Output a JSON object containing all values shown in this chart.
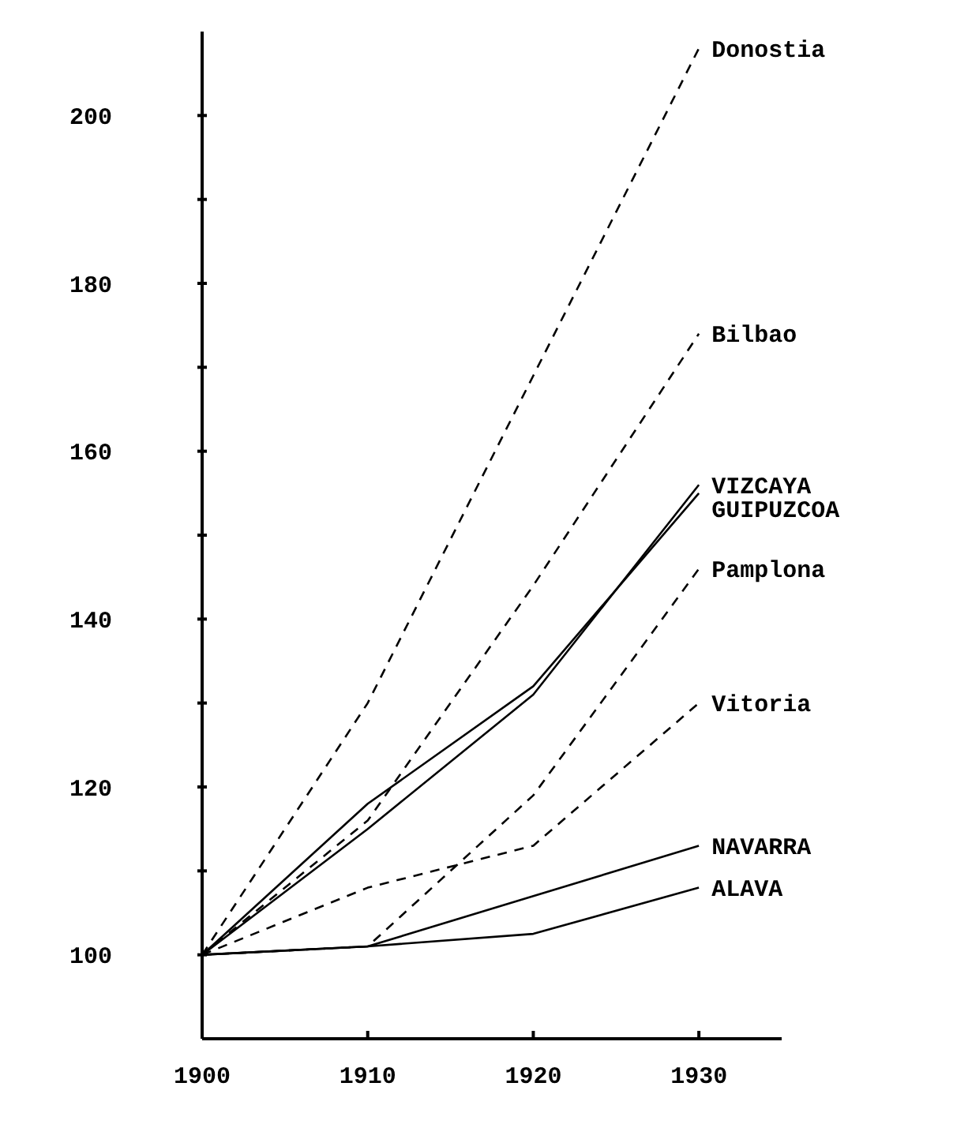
{
  "chart_data": {
    "type": "line",
    "x": [
      1900,
      1910,
      1920,
      1930
    ],
    "xlim": [
      1900,
      1935
    ],
    "xticks": [
      1900,
      1910,
      1920,
      1930
    ],
    "ylim": [
      90,
      210
    ],
    "yticks": [
      100,
      {
        "value": 110,
        "label": null
      },
      120,
      {
        "value": 130,
        "label": null
      },
      140,
      {
        "value": 150,
        "label": null
      },
      160,
      {
        "value": 170,
        "label": null
      },
      180,
      {
        "value": 190,
        "label": null
      },
      200
    ],
    "grid": false,
    "marker": "none",
    "series": [
      {
        "name": "Donostia",
        "color": "#000000",
        "line_style": "dashed",
        "values": [
          100,
          130,
          169,
          208
        ]
      },
      {
        "name": "Bilbao",
        "color": "#000000",
        "line_style": "dashed",
        "values": [
          100,
          116,
          144,
          174
        ]
      },
      {
        "name": "VIZCAYA",
        "color": "#000000",
        "line_style": "solid",
        "values": [
          100,
          115,
          131,
          156
        ]
      },
      {
        "name": "GUIPUZCOA",
        "color": "#000000",
        "line_style": "solid",
        "values": [
          100,
          118,
          132,
          155
        ]
      },
      {
        "name": "Pamplona",
        "color": "#000000",
        "line_style": "dashed",
        "values": [
          100,
          101,
          119,
          146
        ]
      },
      {
        "name": "Vitoria",
        "color": "#000000",
        "line_style": "dashed",
        "values": [
          100,
          108,
          113,
          130
        ]
      },
      {
        "name": "NAVARRA",
        "color": "#000000",
        "line_style": "solid",
        "values": [
          100,
          101,
          107,
          113
        ]
      },
      {
        "name": "ALAVA",
        "color": "#000000",
        "line_style": "solid",
        "values": [
          100,
          101,
          102.5,
          108
        ]
      }
    ]
  }
}
